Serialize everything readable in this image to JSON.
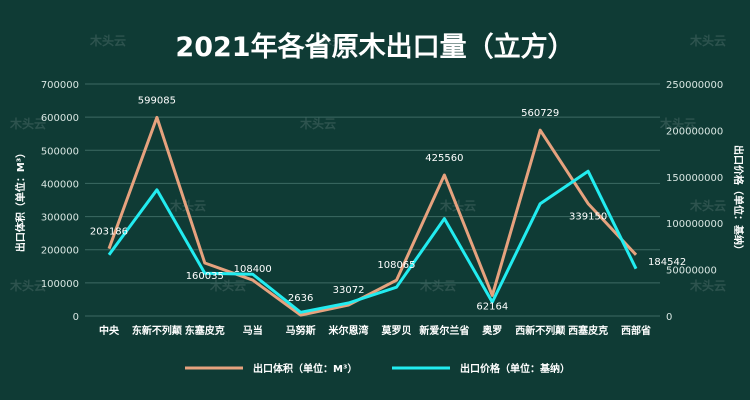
{
  "watermark_text": "木头云",
  "chart_data": {
    "type": "line",
    "title": "2021年各省原木出口量（立方）",
    "categories": [
      "中央",
      "东新不列颠",
      "东塞皮克",
      "马当",
      "马努斯",
      "米尔恩湾",
      "莫罗贝",
      "新爱尔兰省",
      "奥罗",
      "西新不列颠",
      "西塞皮克",
      "西部省"
    ],
    "y_left": {
      "label": "出口体积（单位：M³）",
      "min": 0,
      "max": 700000,
      "ticks": [
        0,
        100000,
        200000,
        300000,
        400000,
        500000,
        600000,
        700000
      ]
    },
    "y_right": {
      "label": "出口价格（单位：基纳）",
      "min": 0,
      "max": 250000000,
      "ticks": [
        0,
        50000000,
        100000000,
        150000000,
        200000000,
        250000000
      ]
    },
    "series": [
      {
        "name": "出口体积（单位：M³）",
        "axis": "left",
        "color": "#e6a27e",
        "values": [
          203186,
          599085,
          160035,
          108400,
          2636,
          33072,
          108065,
          425560,
          62164,
          560729,
          339150,
          184542
        ],
        "labels": [
          "203186",
          "599085",
          "160035",
          "108400",
          "2636",
          "33072",
          "108065",
          "425560",
          "62164",
          "560729",
          "339150",
          "184542"
        ]
      },
      {
        "name": "出口价格（单位：基纳）",
        "axis": "right",
        "color": "#22ecf0",
        "values": [
          66000000,
          136000000,
          46000000,
          45000000,
          4000000,
          14000000,
          31000000,
          105000000,
          15000000,
          121000000,
          156000000,
          51000000
        ]
      }
    ],
    "legend_position": "bottom",
    "grid": true
  }
}
